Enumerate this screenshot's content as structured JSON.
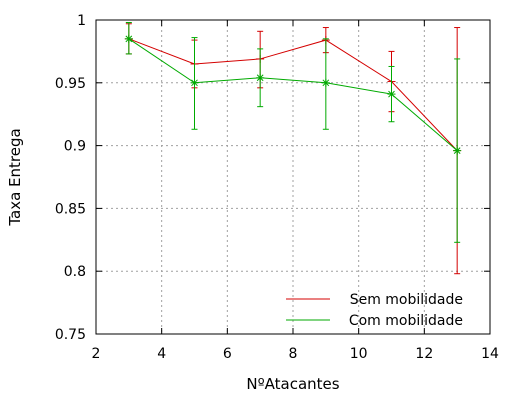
{
  "chart_data": {
    "type": "line",
    "title": "",
    "xlabel": "NºAtacantes",
    "ylabel": "Taxa Entrega",
    "xlim": [
      2,
      14
    ],
    "ylim": [
      0.75,
      1
    ],
    "xticks": [
      2,
      4,
      6,
      8,
      10,
      12,
      14
    ],
    "yticks": [
      0.75,
      0.8,
      0.85,
      0.9,
      0.95,
      1
    ],
    "ytick_labels": [
      "0.75",
      "0.8",
      "0.85",
      "0.9",
      "0.95",
      "1"
    ],
    "xtick_labels": [
      "2",
      "4",
      "6",
      "8",
      "10",
      "12",
      "14"
    ],
    "grid": true,
    "legend_position": "bottom-right",
    "series": [
      {
        "name": "Sem mobilidade",
        "color": "#d40000",
        "marker": "plus",
        "x": [
          3,
          5,
          7,
          9,
          11,
          13
        ],
        "y": [
          0.985,
          0.965,
          0.969,
          0.984,
          0.951,
          0.896
        ],
        "y_low": [
          0.973,
          0.946,
          0.946,
          0.974,
          0.927,
          0.798
        ],
        "y_high": [
          0.997,
          0.984,
          0.991,
          0.994,
          0.975,
          0.994
        ]
      },
      {
        "name": "Com mobilidade",
        "color": "#00aa00",
        "marker": "star",
        "x": [
          3,
          5,
          7,
          9,
          11,
          13
        ],
        "y": [
          0.985,
          0.95,
          0.954,
          0.95,
          0.941,
          0.896
        ],
        "y_low": [
          0.973,
          0.913,
          0.931,
          0.913,
          0.919,
          0.823
        ],
        "y_high": [
          0.998,
          0.986,
          0.977,
          0.985,
          0.963,
          0.969
        ]
      }
    ]
  }
}
